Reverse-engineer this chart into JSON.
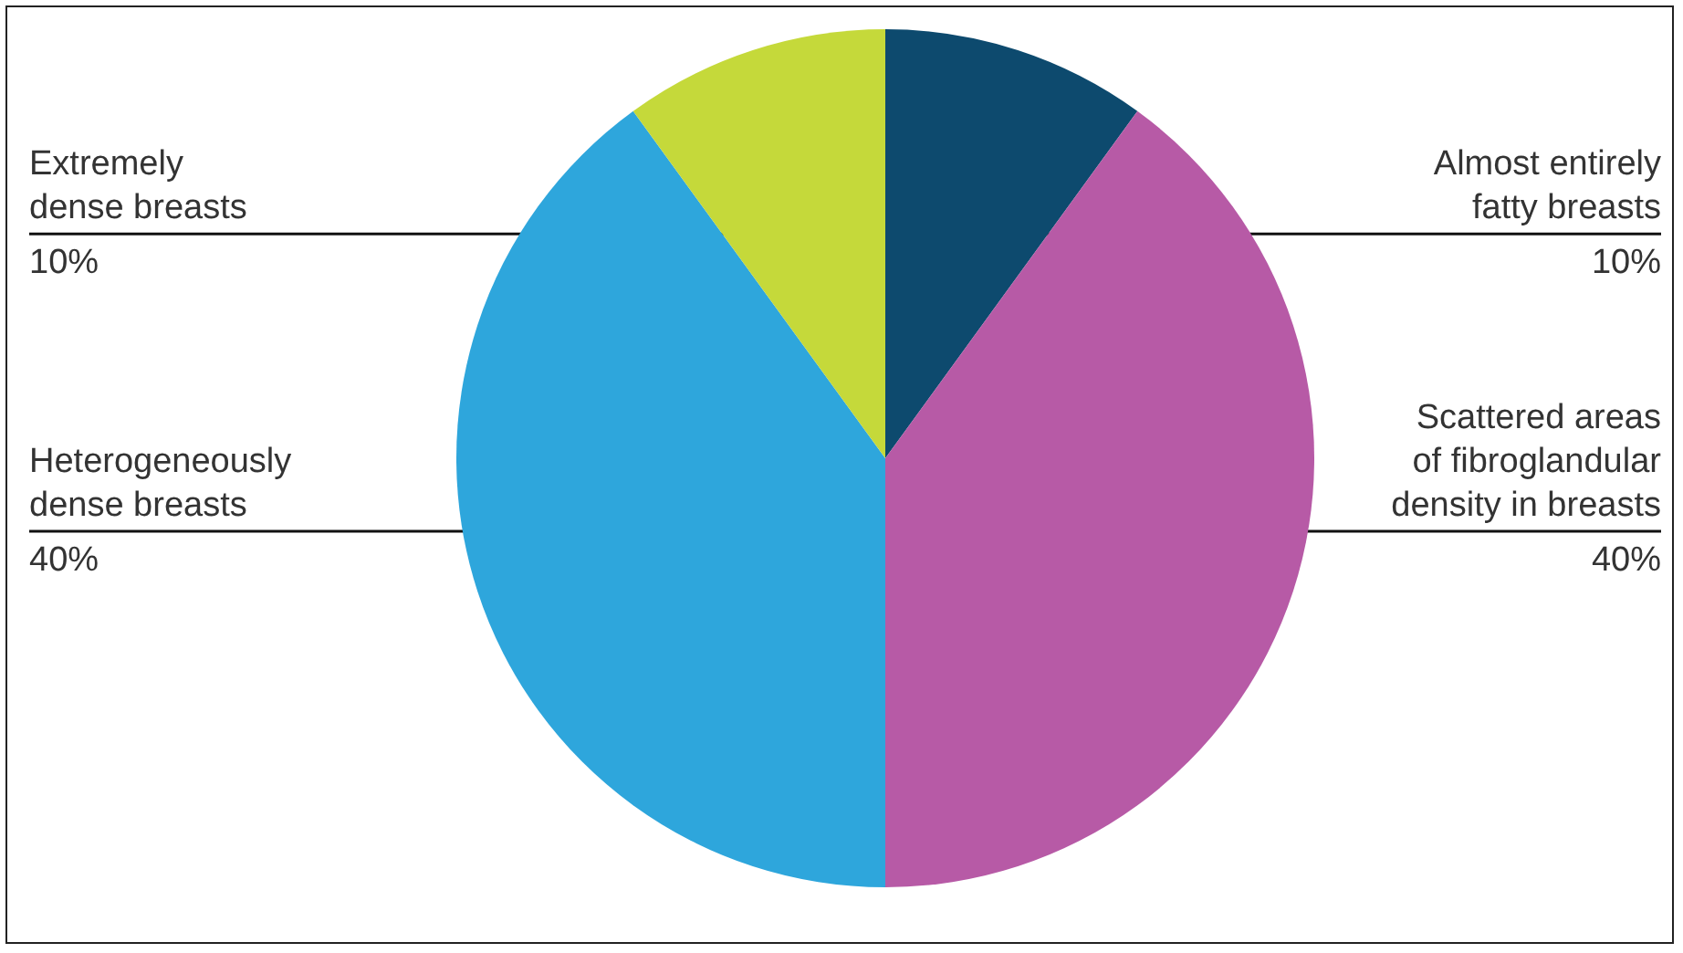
{
  "chart_data": {
    "type": "pie",
    "categories": [
      "Almost entirely\nfatty breasts",
      "Scattered areas\nof fibroglandular\ndensity in breasts",
      "Heterogeneously\ndense breasts",
      "Extremely\ndense breasts"
    ],
    "values": [
      10,
      40,
      40,
      10
    ],
    "value_labels": [
      "10%",
      "40%",
      "40%",
      "10%"
    ],
    "colors": [
      "#0d4a6e",
      "#b75aa6",
      "#2ea6dc",
      "#c5d93a"
    ]
  }
}
